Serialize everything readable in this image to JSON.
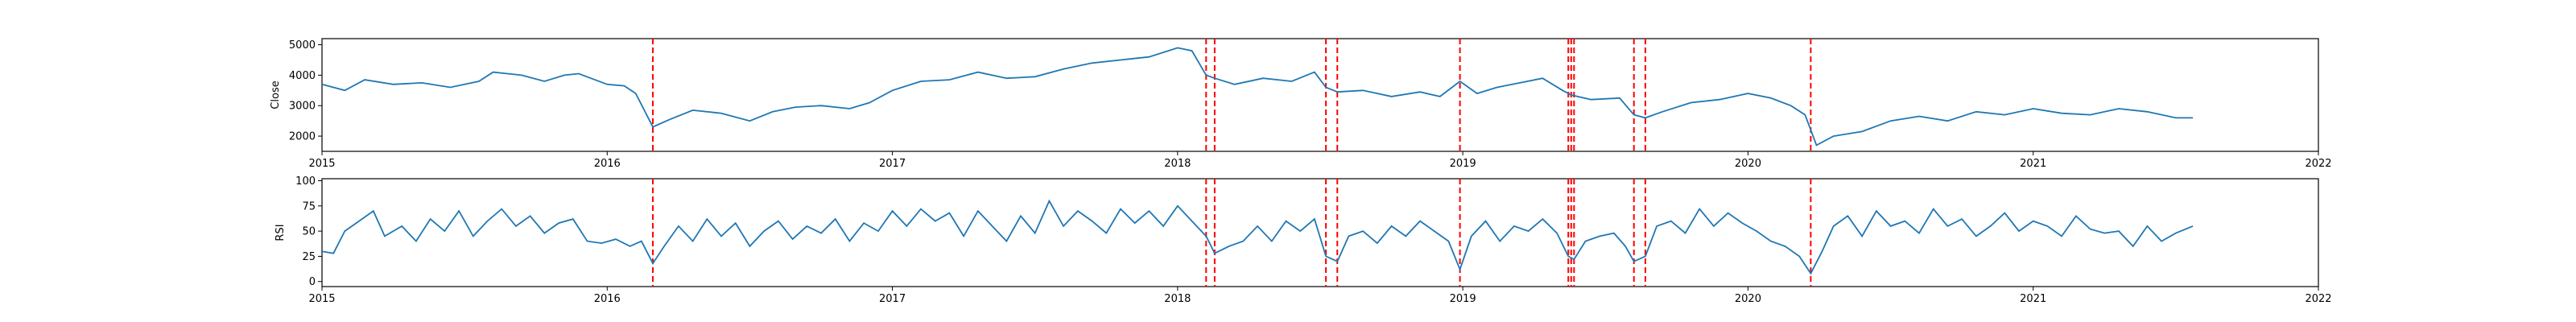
{
  "figure": {
    "time_axis": {
      "range": [
        2015.0,
        2022.0
      ],
      "tick_values": [
        2015,
        2016,
        2017,
        2018,
        2019,
        2020,
        2021,
        2022
      ],
      "tick_labels": [
        "2015",
        "2016",
        "2017",
        "2018",
        "2019",
        "2020",
        "2021",
        "2022"
      ]
    },
    "signal_dates": [
      2016.16,
      2018.1,
      2018.13,
      2018.52,
      2018.56,
      2018.99,
      2019.37,
      2019.38,
      2019.39,
      2019.6,
      2019.64,
      2020.22
    ],
    "colors": {
      "line": "#1f77b4",
      "signal": "#ff0000",
      "axis": "#000000"
    }
  },
  "chart_data": [
    {
      "type": "line",
      "panel": "top",
      "title": "",
      "xlabel": "",
      "ylabel": "Close",
      "ylim": [
        1500,
        5200
      ],
      "yticks": [
        2000,
        3000,
        4000,
        5000
      ],
      "ytick_labels": [
        "2000",
        "3000",
        "4000",
        "5000"
      ],
      "series": [
        {
          "name": "Close",
          "x": [
            2015.0,
            2015.08,
            2015.15,
            2015.25,
            2015.35,
            2015.45,
            2015.55,
            2015.6,
            2015.7,
            2015.78,
            2015.85,
            2015.9,
            2016.0,
            2016.06,
            2016.1,
            2016.16,
            2016.22,
            2016.3,
            2016.4,
            2016.5,
            2016.58,
            2016.66,
            2016.75,
            2016.85,
            2016.92,
            2017.0,
            2017.1,
            2017.2,
            2017.3,
            2017.4,
            2017.5,
            2017.6,
            2017.7,
            2017.8,
            2017.9,
            2018.0,
            2018.05,
            2018.1,
            2018.13,
            2018.2,
            2018.3,
            2018.4,
            2018.48,
            2018.52,
            2018.56,
            2018.65,
            2018.75,
            2018.85,
            2018.92,
            2018.99,
            2019.05,
            2019.12,
            2019.2,
            2019.28,
            2019.35,
            2019.38,
            2019.45,
            2019.55,
            2019.6,
            2019.64,
            2019.7,
            2019.8,
            2019.9,
            2020.0,
            2020.08,
            2020.15,
            2020.2,
            2020.24,
            2020.3,
            2020.4,
            2020.5,
            2020.6,
            2020.7,
            2020.8,
            2020.9,
            2021.0,
            2021.1,
            2021.2,
            2021.3,
            2021.4,
            2021.5,
            2021.56
          ],
          "values": [
            3700,
            3500,
            3850,
            3700,
            3750,
            3600,
            3800,
            4100,
            4000,
            3800,
            4000,
            4050,
            3700,
            3650,
            3400,
            2300,
            2550,
            2850,
            2750,
            2500,
            2800,
            2950,
            3000,
            2900,
            3100,
            3500,
            3800,
            3850,
            4100,
            3900,
            3950,
            4200,
            4400,
            4500,
            4600,
            4900,
            4800,
            4000,
            3900,
            3700,
            3900,
            3800,
            4100,
            3600,
            3450,
            3500,
            3300,
            3450,
            3300,
            3800,
            3400,
            3600,
            3750,
            3900,
            3500,
            3350,
            3200,
            3250,
            2700,
            2600,
            2800,
            3100,
            3200,
            3400,
            3250,
            3000,
            2700,
            1700,
            2000,
            2150,
            2500,
            2650,
            2500,
            2800,
            2700,
            2900,
            2750,
            2700,
            2900,
            2800,
            2600,
            2600
          ]
        }
      ]
    },
    {
      "type": "line",
      "panel": "bottom",
      "title": "",
      "xlabel": "",
      "ylabel": "RSI",
      "ylim": [
        -5,
        102
      ],
      "yticks": [
        0,
        25,
        50,
        75,
        100
      ],
      "ytick_labels": [
        "0",
        "25",
        "50",
        "75",
        "100"
      ],
      "series": [
        {
          "name": "RSI",
          "x": [
            2015.0,
            2015.04,
            2015.08,
            2015.13,
            2015.18,
            2015.22,
            2015.28,
            2015.33,
            2015.38,
            2015.43,
            2015.48,
            2015.53,
            2015.58,
            2015.63,
            2015.68,
            2015.73,
            2015.78,
            2015.83,
            2015.88,
            2015.93,
            2015.98,
            2016.03,
            2016.08,
            2016.12,
            2016.16,
            2016.2,
            2016.25,
            2016.3,
            2016.35,
            2016.4,
            2016.45,
            2016.5,
            2016.55,
            2016.6,
            2016.65,
            2016.7,
            2016.75,
            2016.8,
            2016.85,
            2016.9,
            2016.95,
            2017.0,
            2017.05,
            2017.1,
            2017.15,
            2017.2,
            2017.25,
            2017.3,
            2017.35,
            2017.4,
            2017.45,
            2017.5,
            2017.55,
            2017.6,
            2017.65,
            2017.7,
            2017.75,
            2017.8,
            2017.85,
            2017.9,
            2017.95,
            2018.0,
            2018.05,
            2018.1,
            2018.13,
            2018.18,
            2018.23,
            2018.28,
            2018.33,
            2018.38,
            2018.43,
            2018.48,
            2018.52,
            2018.56,
            2018.6,
            2018.65,
            2018.7,
            2018.75,
            2018.8,
            2018.85,
            2018.9,
            2018.95,
            2018.99,
            2019.03,
            2019.08,
            2019.13,
            2019.18,
            2019.23,
            2019.28,
            2019.33,
            2019.37,
            2019.39,
            2019.43,
            2019.48,
            2019.53,
            2019.57,
            2019.6,
            2019.64,
            2019.68,
            2019.73,
            2019.78,
            2019.83,
            2019.88,
            2019.93,
            2019.98,
            2020.03,
            2020.08,
            2020.13,
            2020.18,
            2020.22,
            2020.26,
            2020.3,
            2020.35,
            2020.4,
            2020.45,
            2020.5,
            2020.55,
            2020.6,
            2020.65,
            2020.7,
            2020.75,
            2020.8,
            2020.85,
            2020.9,
            2020.95,
            2021.0,
            2021.05,
            2021.1,
            2021.15,
            2021.2,
            2021.25,
            2021.3,
            2021.35,
            2021.4,
            2021.45,
            2021.5,
            2021.56
          ],
          "values": [
            30,
            28,
            50,
            60,
            70,
            45,
            55,
            40,
            62,
            50,
            70,
            45,
            60,
            72,
            55,
            65,
            48,
            58,
            62,
            40,
            38,
            42,
            35,
            40,
            18,
            35,
            55,
            40,
            62,
            45,
            58,
            35,
            50,
            60,
            42,
            55,
            48,
            62,
            40,
            58,
            50,
            70,
            55,
            72,
            60,
            68,
            45,
            70,
            55,
            40,
            65,
            48,
            80,
            55,
            70,
            60,
            48,
            72,
            58,
            70,
            55,
            75,
            60,
            45,
            28,
            35,
            40,
            55,
            40,
            60,
            50,
            62,
            25,
            20,
            45,
            50,
            38,
            55,
            45,
            60,
            50,
            40,
            12,
            45,
            60,
            40,
            55,
            50,
            62,
            48,
            25,
            22,
            40,
            45,
            48,
            35,
            20,
            25,
            55,
            60,
            48,
            72,
            55,
            68,
            58,
            50,
            40,
            35,
            25,
            8,
            30,
            55,
            65,
            45,
            70,
            55,
            60,
            48,
            72,
            55,
            62,
            45,
            55,
            68,
            50,
            60,
            55,
            45,
            65,
            52,
            48,
            50,
            35,
            55,
            40,
            48,
            55
          ]
        }
      ]
    }
  ]
}
